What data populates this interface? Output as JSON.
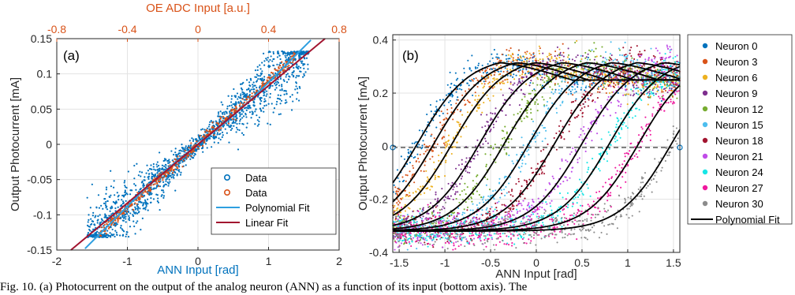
{
  "chart_data": [
    {
      "panel_label": "(a)",
      "type": "scatter",
      "xlabel": "ANN Input [rad]",
      "ylabel": "Output Photocurrent [mA]",
      "top_xlabel": "OE ADC Input [a.u.]",
      "xlim": [
        -2,
        2
      ],
      "ylim": [
        -0.15,
        0.15
      ],
      "top_xlim": [
        -0.8,
        0.8
      ],
      "xticks": [
        "-2",
        "-1",
        "0",
        "1",
        "2"
      ],
      "yticks": [
        "-0.15",
        "-0.1",
        "-0.05",
        "0",
        "0.05",
        "0.1",
        "0.15"
      ],
      "top_xticks": [
        "-0.8",
        "-0.4",
        "0",
        "0.4",
        "0.8"
      ],
      "grid": true,
      "legend_position": "bottom-right",
      "colors": {
        "ann_axis": "#0072BD",
        "oe_axis": "#D95319",
        "data_blue": "#0072BD",
        "data_orange": "#D95319",
        "poly_fit": "#2E9FE0",
        "linear_fit": "#A2142F"
      },
      "series": [
        {
          "name": "Data",
          "kind": "scatter",
          "description_points": "x from -1.57 to 1.57, y ~ 0.09*x with spread, saturating near ±0.13"
        },
        {
          "name": "Data",
          "kind": "scatter"
        },
        {
          "name": "Polynomial Fit",
          "kind": "line",
          "x": [
            -1.6,
            -1.2,
            -0.8,
            -0.4,
            0,
            0.4,
            0.8,
            1.2,
            1.6
          ],
          "y": [
            -0.148,
            -0.108,
            -0.068,
            -0.032,
            0.0,
            0.032,
            0.068,
            0.108,
            0.148
          ]
        },
        {
          "name": "Linear Fit",
          "kind": "line",
          "x": [
            -1.8,
            1.8
          ],
          "y": [
            -0.15,
            0.15
          ]
        }
      ]
    },
    {
      "panel_label": "(b)",
      "type": "scatter",
      "xlabel": "ANN Input [rad]",
      "ylabel": "Output Photocurrent [mA]",
      "xlim": [
        -1.57,
        1.57
      ],
      "ylim": [
        -0.4,
        0.42
      ],
      "xticks": [
        "-1.5",
        "-1",
        "-0.5",
        "0",
        "0.5",
        "1",
        "1.5"
      ],
      "yticks": [
        "-0.4",
        "-0.2",
        "0",
        "0.2",
        "0.4"
      ],
      "grid": true,
      "legend_position": "outside-right",
      "series": [
        {
          "name": "Neuron 0",
          "color": "#0072BD",
          "x0": -1.3
        },
        {
          "name": "Neuron 3",
          "color": "#D95319",
          "x0": -1.12
        },
        {
          "name": "Neuron 6",
          "color": "#EDB120",
          "x0": -0.92
        },
        {
          "name": "Neuron 9",
          "color": "#7E2F8E",
          "x0": -0.62
        },
        {
          "name": "Neuron 12",
          "color": "#77AC30",
          "x0": -0.35
        },
        {
          "name": "Neuron 15",
          "color": "#4DBEEE",
          "x0": -0.08
        },
        {
          "name": "Neuron 18",
          "color": "#A2142F",
          "x0": 0.2
        },
        {
          "name": "Neuron 21",
          "color": "#C04CE8",
          "x0": 0.5
        },
        {
          "name": "Neuron 24",
          "color": "#17E6E6",
          "x0": 0.8
        },
        {
          "name": "Neuron 27",
          "color": "#F0189E",
          "x0": 1.12
        },
        {
          "name": "Neuron 30",
          "color": "#8C8C8C",
          "x0": 1.48
        }
      ],
      "fit_legend": "Polynomial Fit",
      "fit_color": "#000000"
    }
  ],
  "caption": "Fig. 10. (a) Photocurrent on the output of the analog neuron (ANN) as a function of its input (bottom axis). The"
}
